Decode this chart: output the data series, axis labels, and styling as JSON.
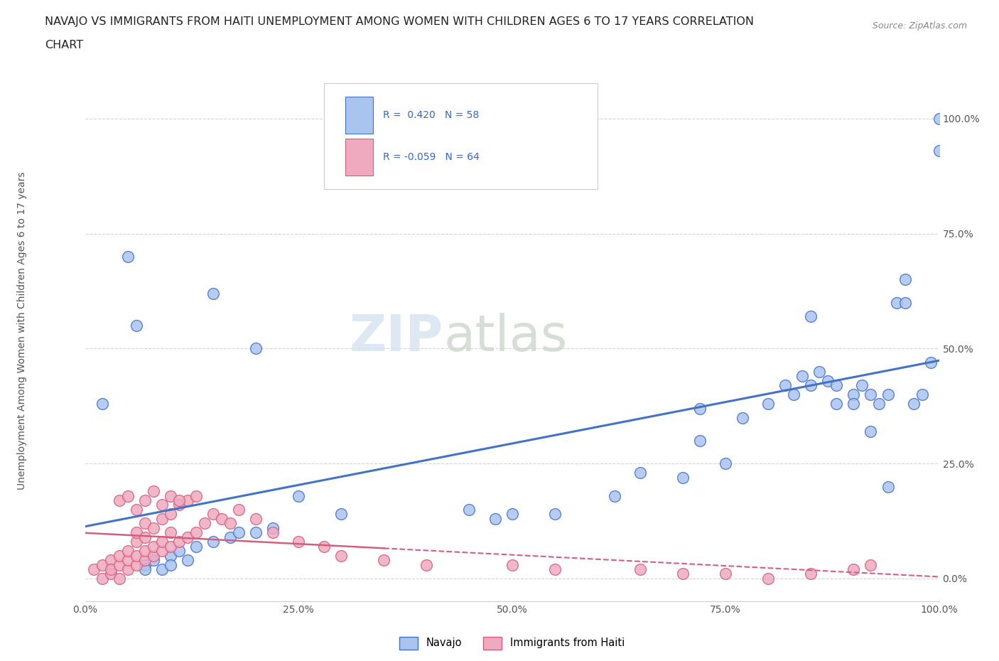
{
  "title_line1": "NAVAJO VS IMMIGRANTS FROM HAITI UNEMPLOYMENT AMONG WOMEN WITH CHILDREN AGES 6 TO 17 YEARS CORRELATION",
  "title_line2": "CHART",
  "source": "Source: ZipAtlas.com",
  "ylabel": "Unemployment Among Women with Children Ages 6 to 17 years",
  "xmin": 0.0,
  "xmax": 1.0,
  "ymin": -0.05,
  "ymax": 1.1,
  "xtick_labels": [
    "0.0%",
    "25.0%",
    "50.0%",
    "75.0%",
    "100.0%"
  ],
  "xtick_vals": [
    0.0,
    0.25,
    0.5,
    0.75,
    1.0
  ],
  "ytick_labels": [
    "0.0%",
    "25.0%",
    "50.0%",
    "75.0%",
    "100.0%"
  ],
  "ytick_vals": [
    0.0,
    0.25,
    0.5,
    0.75,
    1.0
  ],
  "navajo_color": "#aac4f0",
  "navajo_edge_color": "#4472c4",
  "haiti_color": "#f0aac0",
  "haiti_edge_color": "#d06080",
  "legend_label_navajo": "Navajo",
  "legend_label_haiti": "Immigrants from Haiti",
  "watermark_zip": "ZIP",
  "watermark_atlas": "atlas",
  "background_color": "#ffffff",
  "grid_color": "#d0d0d0",
  "navajo_x": [
    0.02,
    0.05,
    0.06,
    0.07,
    0.07,
    0.08,
    0.09,
    0.1,
    0.1,
    0.11,
    0.12,
    0.13,
    0.15,
    0.17,
    0.18,
    0.2,
    0.22,
    0.3,
    0.45,
    0.48,
    0.5,
    0.55,
    0.62,
    0.65,
    0.7,
    0.72,
    0.75,
    0.77,
    0.8,
    0.82,
    0.83,
    0.84,
    0.85,
    0.86,
    0.87,
    0.88,
    0.9,
    0.91,
    0.92,
    0.93,
    0.94,
    0.95,
    0.96,
    0.97,
    0.98,
    0.99,
    1.0,
    1.0,
    0.72,
    0.85,
    0.88,
    0.9,
    0.92,
    0.94,
    0.96,
    0.15,
    0.2,
    0.25
  ],
  "navajo_y": [
    0.38,
    0.7,
    0.55,
    0.03,
    0.02,
    0.04,
    0.02,
    0.05,
    0.03,
    0.06,
    0.04,
    0.07,
    0.08,
    0.09,
    0.1,
    0.1,
    0.11,
    0.14,
    0.15,
    0.13,
    0.14,
    0.14,
    0.18,
    0.23,
    0.22,
    0.3,
    0.25,
    0.35,
    0.38,
    0.42,
    0.4,
    0.44,
    0.42,
    0.45,
    0.43,
    0.38,
    0.4,
    0.42,
    0.32,
    0.38,
    0.4,
    0.6,
    0.65,
    0.38,
    0.4,
    0.47,
    1.0,
    0.93,
    0.37,
    0.57,
    0.42,
    0.38,
    0.4,
    0.2,
    0.6,
    0.62,
    0.5,
    0.18
  ],
  "haiti_x": [
    0.01,
    0.02,
    0.02,
    0.03,
    0.03,
    0.03,
    0.04,
    0.04,
    0.04,
    0.05,
    0.05,
    0.05,
    0.06,
    0.06,
    0.06,
    0.06,
    0.07,
    0.07,
    0.07,
    0.07,
    0.08,
    0.08,
    0.08,
    0.09,
    0.09,
    0.09,
    0.1,
    0.1,
    0.1,
    0.11,
    0.11,
    0.12,
    0.12,
    0.13,
    0.13,
    0.14,
    0.15,
    0.16,
    0.17,
    0.18,
    0.2,
    0.22,
    0.25,
    0.28,
    0.3,
    0.35,
    0.4,
    0.5,
    0.55,
    0.65,
    0.7,
    0.75,
    0.8,
    0.85,
    0.9,
    0.92,
    0.04,
    0.05,
    0.06,
    0.07,
    0.08,
    0.09,
    0.1,
    0.11
  ],
  "haiti_y": [
    0.02,
    0.0,
    0.03,
    0.01,
    0.04,
    0.02,
    0.0,
    0.03,
    0.05,
    0.02,
    0.04,
    0.06,
    0.03,
    0.05,
    0.08,
    0.1,
    0.04,
    0.06,
    0.09,
    0.12,
    0.05,
    0.07,
    0.11,
    0.06,
    0.08,
    0.13,
    0.07,
    0.1,
    0.14,
    0.08,
    0.16,
    0.09,
    0.17,
    0.1,
    0.18,
    0.12,
    0.14,
    0.13,
    0.12,
    0.15,
    0.13,
    0.1,
    0.08,
    0.07,
    0.05,
    0.04,
    0.03,
    0.03,
    0.02,
    0.02,
    0.01,
    0.01,
    0.0,
    0.01,
    0.02,
    0.03,
    0.17,
    0.18,
    0.15,
    0.17,
    0.19,
    0.16,
    0.18,
    0.17
  ]
}
